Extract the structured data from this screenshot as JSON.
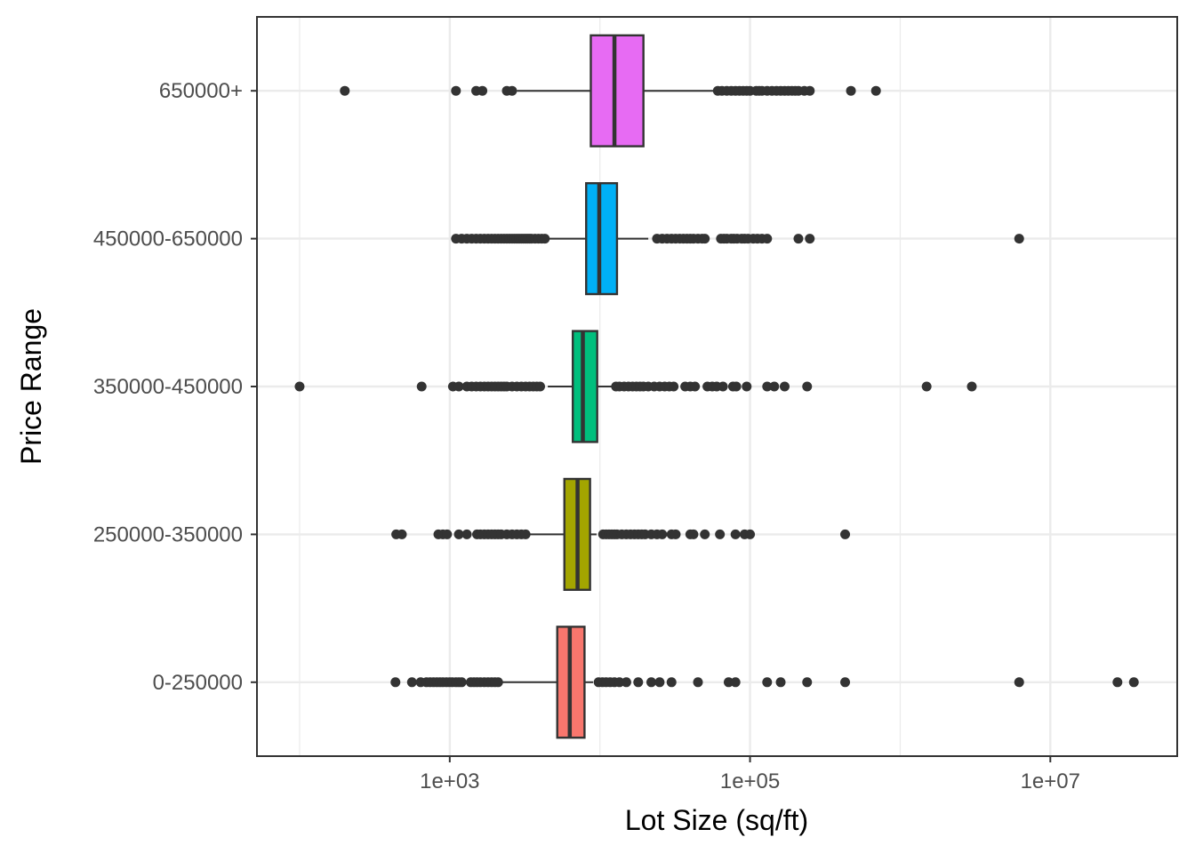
{
  "chart_data": {
    "type": "boxplot",
    "orientation": "horizontal",
    "title": "",
    "xlabel": "Lot Size (sq/ft)",
    "ylabel": "Price Range",
    "x_scale": "log10",
    "xlim": [
      52,
      70000000
    ],
    "x_ticks": [
      {
        "value": 1000,
        "label": "1e+03"
      },
      {
        "value": 100000,
        "label": "1e+05"
      },
      {
        "value": 10000000,
        "label": "1e+07"
      }
    ],
    "grid": true,
    "legend": "none",
    "categories": [
      "0-250000",
      "250000-350000",
      "350000-450000",
      "450000-650000",
      "650000+"
    ],
    "series": [
      {
        "category": "0-250000",
        "color": "#F8766D",
        "q1": 5200,
        "median": 6300,
        "q3": 7900,
        "whisker_low": 2200,
        "whisker_high": 9000,
        "outliers": [
          435,
          560,
          640,
          700,
          740,
          780,
          820,
          860,
          900,
          950,
          1000,
          1040,
          1100,
          1150,
          1200,
          1380,
          1450,
          1520,
          1600,
          1700,
          1800,
          1900,
          2000,
          2100,
          9800,
          10400,
          11000,
          11700,
          12500,
          13500,
          15000,
          18000,
          22000,
          25000,
          30000,
          45000,
          72000,
          80000,
          130000,
          160000,
          240000,
          430000,
          6200000,
          28000000,
          36000000
        ]
      },
      {
        "category": "250000-350000",
        "color": "#A3A500",
        "q1": 5800,
        "median": 7100,
        "q3": 8600,
        "whisker_low": 3400,
        "whisker_high": 9500,
        "outliers": [
          440,
          480,
          840,
          900,
          960,
          1150,
          1300,
          1520,
          1600,
          1700,
          1800,
          1900,
          2000,
          2100,
          2200,
          2400,
          2600,
          2800,
          3000,
          3200,
          10500,
          11000,
          11500,
          12000,
          12500,
          13000,
          14000,
          15000,
          16000,
          17000,
          18000,
          19000,
          20000,
          22000,
          24000,
          26000,
          30000,
          32000,
          40000,
          42000,
          50000,
          63000,
          80000,
          92000,
          100000,
          430000
        ]
      },
      {
        "category": "350000-450000",
        "color": "#00BF7D",
        "q1": 6600,
        "median": 7700,
        "q3": 9600,
        "whisker_low": 4500,
        "whisker_high": 12500,
        "outliers": [
          100,
          650,
          1050,
          1150,
          1300,
          1400,
          1500,
          1600,
          1700,
          1800,
          1900,
          2000,
          2100,
          2200,
          2300,
          2400,
          2600,
          2800,
          3000,
          3200,
          3400,
          3600,
          3800,
          4000,
          12800,
          13500,
          14500,
          15500,
          16500,
          17500,
          18500,
          19500,
          21000,
          23000,
          25000,
          27000,
          29000,
          31000,
          37000,
          40000,
          43000,
          52000,
          56000,
          60000,
          66000,
          77000,
          81000,
          95000,
          130000,
          145000,
          170000,
          240000,
          1500000,
          3000000
        ]
      },
      {
        "category": "450000-650000",
        "color": "#00B0F6",
        "q1": 8100,
        "median": 9900,
        "q3": 13000,
        "whisker_low": 3200,
        "whisker_high": 21000,
        "outliers": [
          1100,
          1200,
          1300,
          1400,
          1500,
          1600,
          1700,
          1800,
          1900,
          2000,
          2100,
          2200,
          2300,
          2400,
          2500,
          2600,
          2700,
          2800,
          2900,
          3000,
          3100,
          3200,
          3300,
          3400,
          3500,
          3700,
          3900,
          4100,
          4300,
          24000,
          26000,
          28000,
          30000,
          32000,
          34000,
          36000,
          38000,
          40000,
          42000,
          45000,
          48000,
          50000,
          64000,
          67000,
          70000,
          75000,
          78000,
          82000,
          88000,
          92000,
          97000,
          105000,
          112000,
          120000,
          130000,
          210000,
          250000,
          6200000
        ]
      },
      {
        "category": "650000+",
        "color": "#E76BF3",
        "q1": 8700,
        "median": 12500,
        "q3": 19500,
        "whisker_low": 2800,
        "whisker_high": 60000,
        "outliers": [
          200,
          1100,
          1500,
          1650,
          2400,
          2600,
          61000,
          65000,
          70000,
          75000,
          80000,
          85000,
          90000,
          95000,
          100000,
          110000,
          115000,
          120000,
          130000,
          140000,
          150000,
          160000,
          170000,
          180000,
          190000,
          200000,
          210000,
          230000,
          250000,
          470000,
          690000
        ]
      }
    ]
  }
}
